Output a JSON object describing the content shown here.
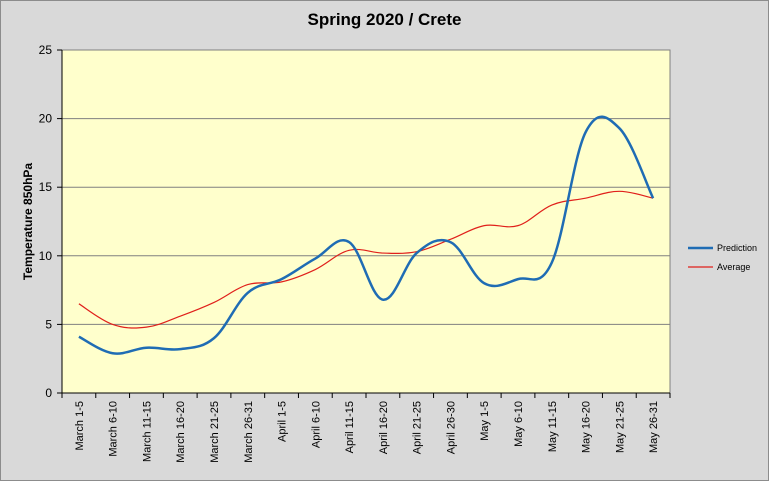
{
  "chart_data": {
    "type": "line",
    "title": "Spring 2020 / Crete",
    "xlabel": "",
    "ylabel": "Temperature 850hPa",
    "ylim": [
      0,
      25
    ],
    "yticks": [
      0,
      5,
      10,
      15,
      20,
      25
    ],
    "categories": [
      "March 1-5",
      "March 6-10",
      "March 11-15",
      "March 16-20",
      "March 21-25",
      "March 26-31",
      "April 1-5",
      "April 6-10",
      "April 11-15",
      "April 16-20",
      "April 21-25",
      "April 26-30",
      "May 1-5",
      "May 6-10",
      "May 11-15",
      "May 16-20",
      "May 21-25",
      "May 26-31"
    ],
    "series": [
      {
        "name": "Prediction",
        "color": "#1f6cb4",
        "values": [
          4.1,
          2.9,
          3.3,
          3.2,
          4.0,
          7.3,
          8.3,
          9.8,
          11.0,
          6.8,
          10.2,
          11.0,
          8.0,
          8.3,
          9.5,
          19.0,
          19.3,
          14.2
        ]
      },
      {
        "name": "Average",
        "color": "#e0201b",
        "values": [
          6.5,
          5.0,
          4.8,
          5.6,
          6.6,
          7.9,
          8.1,
          9.0,
          10.4,
          10.2,
          10.3,
          11.2,
          12.2,
          12.2,
          13.7,
          14.2,
          14.7,
          14.2
        ]
      }
    ],
    "grid": "horizontal",
    "legend_position": "right",
    "plot_background": "#ffffcc"
  }
}
